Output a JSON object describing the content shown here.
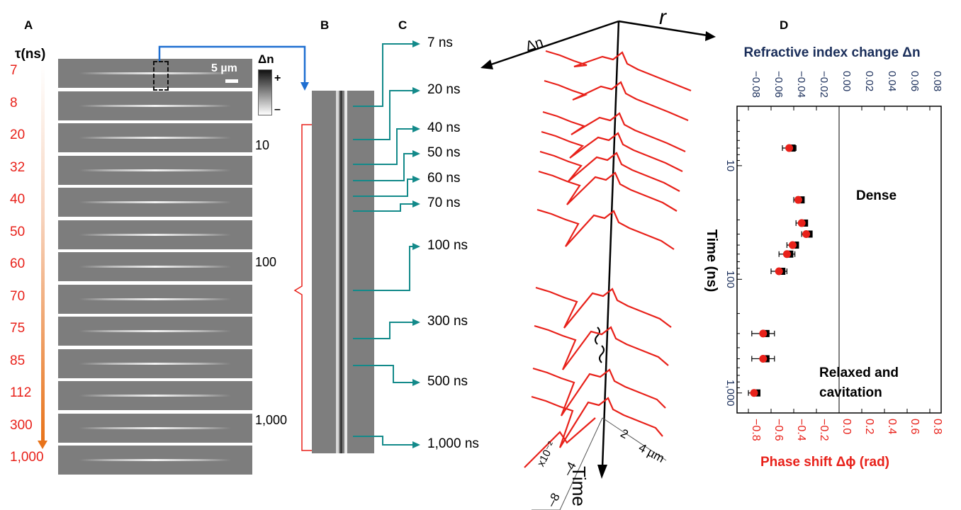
{
  "panels": {
    "a": "A",
    "b": "B",
    "c": "C",
    "d": "D"
  },
  "panel_a": {
    "tau_header": "τ(ns)",
    "tau_values": [
      "7",
      "8",
      "20",
      "32",
      "40",
      "50",
      "60",
      "70",
      "75",
      "85",
      "112",
      "300",
      "1,000"
    ],
    "scale_bar": "5 µm",
    "colorbar_title": "Δn",
    "colorbar_plus": "+",
    "colorbar_minus": "–"
  },
  "panel_b": {
    "time_ticks": [
      "10",
      "100",
      "1,000"
    ]
  },
  "panel_c": {
    "time_labels": [
      "7 ns",
      "20 ns",
      "40 ns",
      "50 ns",
      "60 ns",
      "70 ns",
      "100 ns",
      "300 ns",
      "500 ns",
      "1,000 ns"
    ],
    "axis_r": "r",
    "axis_dn": "Δn",
    "axis_time": "Time",
    "dn_ticks": [
      "x10⁻²",
      "–4",
      "–8"
    ],
    "r_ticks": [
      "2",
      "4 µm"
    ],
    "colors": {
      "trace": "#e8211a",
      "arrow": "#138a8a"
    }
  },
  "chart_data": {
    "type": "scatter",
    "title": "",
    "top_axis_label": "Refractive index change Δn",
    "top_ticks": [
      "-0.08",
      "-0.06",
      "-0.04",
      "-0.02",
      "0.00",
      "0.02",
      "0.04",
      "0.06",
      "0.08"
    ],
    "xlabel": "Phase shift Δϕ (rad)",
    "bottom_ticks": [
      "-0.8",
      "-0.6",
      "-0.4",
      "-0.2",
      "0.0",
      "0.2",
      "0.4",
      "0.6",
      "0.8"
    ],
    "xlim": [
      -0.9,
      0.9
    ],
    "ylabel": "Time (ns)",
    "y_scale": "log",
    "ylim": [
      3,
      1500
    ],
    "y_ticks": [
      "10",
      "100",
      "1,000"
    ],
    "annotations": [
      "Dense",
      "Relaxed and\ncavitation"
    ],
    "series": [
      {
        "points": [
          {
            "t": 7,
            "dphi": -0.44,
            "err": 0.06
          },
          {
            "t": 20,
            "dphi": -0.36,
            "err": 0.04
          },
          {
            "t": 32,
            "dphi": -0.33,
            "err": 0.05
          },
          {
            "t": 40,
            "dphi": -0.29,
            "err": 0.04
          },
          {
            "t": 50,
            "dphi": -0.41,
            "err": 0.05
          },
          {
            "t": 60,
            "dphi": -0.46,
            "err": 0.07
          },
          {
            "t": 85,
            "dphi": -0.53,
            "err": 0.07
          },
          {
            "t": 300,
            "dphi": -0.67,
            "err": 0.1
          },
          {
            "t": 500,
            "dphi": -0.67,
            "err": 0.1
          },
          {
            "t": 1000,
            "dphi": -0.75,
            "err": 0.05
          }
        ]
      }
    ],
    "colors": {
      "marker": "#e8211a",
      "errorbar": "#000000",
      "bottom_axis": "#e8211a",
      "top_axis": "#1a2e5a"
    }
  }
}
